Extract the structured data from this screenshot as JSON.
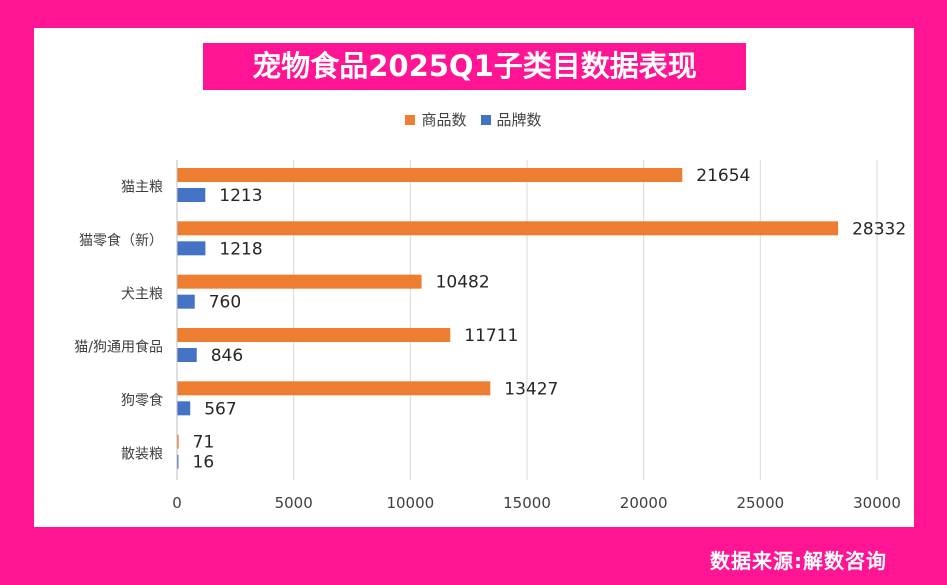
{
  "chart_data": {
    "type": "bar",
    "orientation": "horizontal",
    "title": "宠物食品2025Q1子类目数据表现",
    "categories": [
      "猫主粮",
      "猫零食（新）",
      "犬主粮",
      "猫/狗通用食品",
      "狗零食",
      "散装粮"
    ],
    "series": [
      {
        "name": "商品数",
        "color": "#ed7d31",
        "values": [
          21654,
          28332,
          10482,
          11711,
          13427,
          71
        ]
      },
      {
        "name": "品牌数",
        "color": "#4472c4",
        "values": [
          1213,
          1218,
          760,
          846,
          567,
          16
        ]
      }
    ],
    "xlim": [
      0,
      30000
    ],
    "xticks": [
      0,
      5000,
      10000,
      15000,
      20000,
      25000,
      30000
    ],
    "grid": true,
    "legend_position": "top"
  },
  "footer": {
    "source": "数据来源:解数咨询"
  }
}
